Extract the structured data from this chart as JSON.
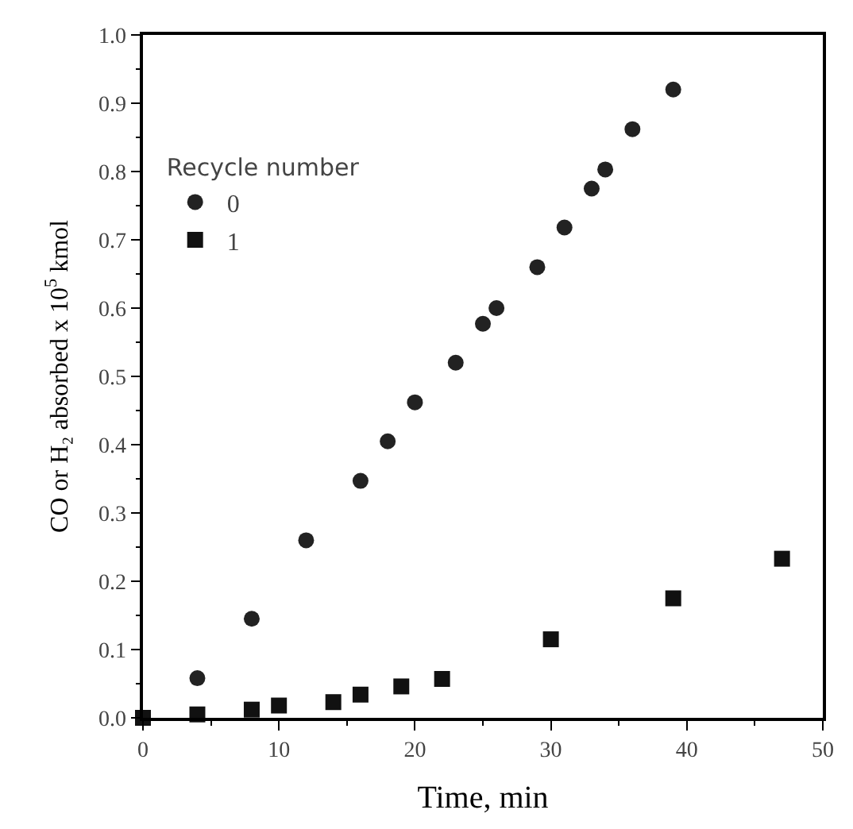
{
  "chart_data": {
    "type": "scatter",
    "xlabel": "Time, min",
    "ylabel": "CO or H₂ absorbed x 10$^{5}$ kmol",
    "legend_title": "Recycle number",
    "xlim": [
      0,
      50
    ],
    "xticks": [
      0,
      10,
      20,
      30,
      40,
      50
    ],
    "ylim": [
      0,
      1.0
    ],
    "yticks": [
      {
        "value": 0,
        "label": "0.0"
      },
      0.1,
      0.2,
      0.3,
      0.4,
      0.5,
      0.6,
      0.7,
      0.8,
      0.9,
      {
        "value": 1.0,
        "label": "1.0"
      }
    ],
    "legend": "top left",
    "series": [
      {
        "name": "0",
        "color": "#222222",
        "marker": "circle",
        "x": [
          4,
          8,
          12,
          16,
          18,
          20,
          23,
          25,
          26,
          29,
          31,
          33,
          34,
          36,
          39
        ],
        "values": [
          0.058,
          0.145,
          0.26,
          0.347,
          0.405,
          0.462,
          0.52,
          0.577,
          0.6,
          0.66,
          0.718,
          0.775,
          0.803,
          0.862,
          0.92
        ]
      },
      {
        "name": "1",
        "color": "#111111",
        "marker": "square",
        "x": [
          0,
          4,
          8,
          10,
          14,
          16,
          19,
          22,
          30,
          39,
          47
        ],
        "values": [
          0,
          0.005,
          0.012,
          0.018,
          0.023,
          0.034,
          0.046,
          0.057,
          0.115,
          0.175,
          0.233
        ]
      }
    ]
  }
}
